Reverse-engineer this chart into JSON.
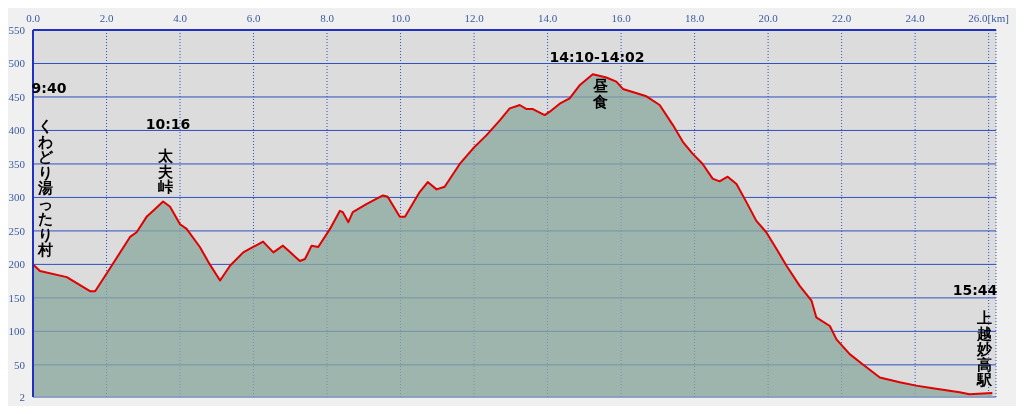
{
  "chart_data": {
    "type": "area",
    "x": [
      0,
      0.19,
      0.92,
      1.55,
      1.69,
      2.0,
      2.64,
      2.82,
      3.09,
      3.27,
      3.54,
      3.73,
      4.0,
      4.18,
      4.54,
      4.81,
      5.09,
      5.36,
      5.72,
      5.99,
      6.26,
      6.54,
      6.8,
      7.0,
      7.26,
      7.4,
      7.58,
      7.76,
      8.08,
      8.35,
      8.43,
      8.58,
      8.7,
      9.07,
      9.52,
      9.65,
      9.98,
      10.12,
      10.52,
      10.74,
      10.98,
      11.2,
      11.61,
      11.97,
      12.34,
      12.7,
      12.97,
      13.19,
      13.24,
      13.43,
      13.6,
      13.92,
      14.06,
      14.33,
      14.6,
      14.88,
      15.23,
      15.6,
      15.87,
      16.05,
      16.69,
      17.05,
      17.41,
      17.68,
      17.95,
      18.22,
      18.49,
      18.68,
      18.9,
      19.14,
      19.41,
      19.68,
      19.95,
      20.23,
      20.5,
      20.86,
      21.18,
      21.31,
      21.68,
      21.86,
      22.22,
      22.57,
      23.04,
      23.58,
      24.03,
      24.48,
      25.21,
      25.48,
      26.1
    ],
    "series": [
      {
        "color": "#e00000",
        "values": [
          200,
          190,
          181,
          160,
          160,
          186,
          241,
          248,
          271,
          280,
          294,
          286,
          260,
          253,
          226,
          200,
          176,
          198,
          218,
          226,
          234,
          218,
          228,
          218,
          205,
          208,
          228,
          226,
          253,
          280,
          278,
          263,
          278,
          290,
          303,
          301,
          271,
          271,
          308,
          323,
          312,
          316,
          350,
          373,
          393,
          415,
          433,
          437,
          438,
          432,
          432,
          423,
          428,
          440,
          448,
          468,
          484,
          479,
          473,
          462,
          451,
          438,
          408,
          383,
          365,
          350,
          328,
          324,
          331,
          320,
          293,
          265,
          248,
          223,
          198,
          168,
          146,
          121,
          108,
          88,
          66,
          51,
          31,
          24,
          19,
          15,
          9,
          6,
          8
        ]
      }
    ],
    "xlim": [
      0,
      26.2
    ],
    "xticks": [
      {
        "value": 0,
        "label": "0.0"
      },
      {
        "value": 2,
        "label": "2.0"
      },
      {
        "value": 4,
        "label": "4.0"
      },
      {
        "value": 6,
        "label": "6.0"
      },
      {
        "value": 8,
        "label": "8.0"
      },
      {
        "value": 10,
        "label": "10.0"
      },
      {
        "value": 12,
        "label": "12.0"
      },
      {
        "value": 14,
        "label": "14.0"
      },
      {
        "value": 16,
        "label": "16.0"
      },
      {
        "value": 18,
        "label": "18.0"
      },
      {
        "value": 20,
        "label": "20.0"
      },
      {
        "value": 22,
        "label": "22.0"
      },
      {
        "value": 24,
        "label": "24.0"
      },
      {
        "value": 26,
        "label": "26.0[km]"
      }
    ],
    "ylim": [
      2,
      550
    ],
    "yticks": [
      2,
      50,
      100,
      150,
      200,
      250,
      300,
      350,
      400,
      450,
      500,
      550
    ],
    "grid": true,
    "legend": false,
    "marker": "none",
    "line_style": "solid",
    "annotations": [
      "9:40",
      "くわどり湯ったり村",
      "10:16",
      "太夫峠",
      "14:10-14:02",
      "昼食",
      "15:44",
      "上越妙高駅"
    ]
  }
}
